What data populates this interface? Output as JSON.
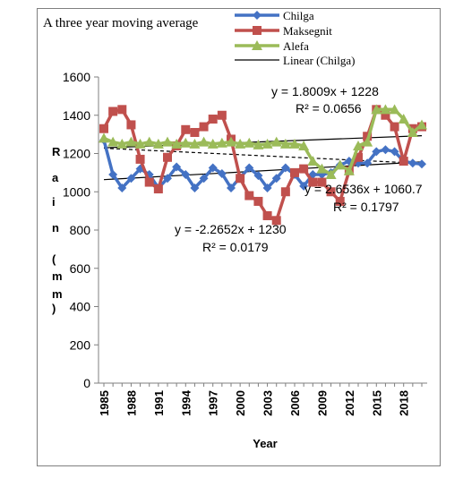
{
  "chart_data": {
    "type": "line",
    "title": "A three year moving average",
    "xlabel": "Year",
    "ylabel_glyphs": [
      "R",
      "a",
      "i",
      "n",
      "(",
      "m",
      "m",
      ")"
    ],
    "ylim": [
      0,
      1600
    ],
    "yticks": [
      0,
      200,
      400,
      600,
      800,
      1000,
      1200,
      1400,
      1600
    ],
    "xticks": [
      "1985",
      "1988",
      "1991",
      "1994",
      "1997",
      "2000",
      "2003",
      "2006",
      "2009",
      "2012",
      "2015",
      "2018"
    ],
    "x": [
      1985,
      1986,
      1987,
      1988,
      1989,
      1990,
      1991,
      1992,
      1993,
      1994,
      1995,
      1996,
      1997,
      1998,
      1999,
      2000,
      2001,
      2002,
      2003,
      2004,
      2005,
      2006,
      2007,
      2008,
      2009,
      2010,
      2011,
      2012,
      2013,
      2014,
      2015,
      2016,
      2017,
      2018,
      2019,
      2020
    ],
    "series": [
      {
        "name": "Chilga",
        "color": "#4472c4",
        "marker": "diamond",
        "values": [
          1270,
          1090,
          1020,
          1070,
          1120,
          1090,
          1020,
          1070,
          1130,
          1090,
          1020,
          1070,
          1125,
          1095,
          1020,
          1075,
          1125,
          1085,
          1020,
          1070,
          1125,
          1090,
          1030,
          1090,
          1090,
          1100,
          1140,
          1160,
          1150,
          1150,
          1210,
          1220,
          1210,
          1160,
          1150,
          1145
        ]
      },
      {
        "name": "Maksegnit",
        "color": "#c0504d",
        "marker": "square",
        "values": [
          1330,
          1420,
          1430,
          1350,
          1170,
          1050,
          1015,
          1180,
          1240,
          1325,
          1310,
          1340,
          1380,
          1400,
          1275,
          1070,
          980,
          950,
          875,
          850,
          1000,
          1100,
          1120,
          1050,
          1050,
          1000,
          950,
          1110,
          1180,
          1290,
          1430,
          1400,
          1340,
          1160,
          1330,
          1340
        ]
      },
      {
        "name": "Alefa",
        "color": "#9bbb59",
        "marker": "triangle",
        "values": [
          1280,
          1260,
          1250,
          1260,
          1250,
          1260,
          1250,
          1260,
          1250,
          1255,
          1250,
          1260,
          1250,
          1255,
          1260,
          1250,
          1255,
          1245,
          1250,
          1260,
          1250,
          1250,
          1240,
          1160,
          1120,
          1090,
          1140,
          1110,
          1240,
          1260,
          1430,
          1430,
          1430,
          1380,
          1310,
          1350
        ]
      }
    ],
    "legend": {
      "placement": "top-right",
      "entries": [
        "Chilga",
        "Maksegnit",
        "Alefa",
        "Linear (Chilga)"
      ]
    },
    "trendlines": [
      {
        "series": "Maksegnit",
        "style": "solid",
        "color": "#000000",
        "equation": "y = 1.8009x + 1228",
        "r2_label": "R² = 0.0656",
        "slope": 1.8009,
        "intercept": 1228
      },
      {
        "series": "Chilga",
        "style": "solid",
        "color": "#000000",
        "equation": "y = 2.6536x + 1060.7",
        "r2_label": "R² = 0.1797",
        "slope": 2.6536,
        "intercept": 1060.7
      },
      {
        "series": "Alefa",
        "style": "dashed",
        "color": "#000000",
        "equation": "y = -2.2652x + 1230",
        "r2_label": "R² = 0.0179",
        "slope": -2.2652,
        "intercept": 1230
      }
    ],
    "grid": false
  }
}
